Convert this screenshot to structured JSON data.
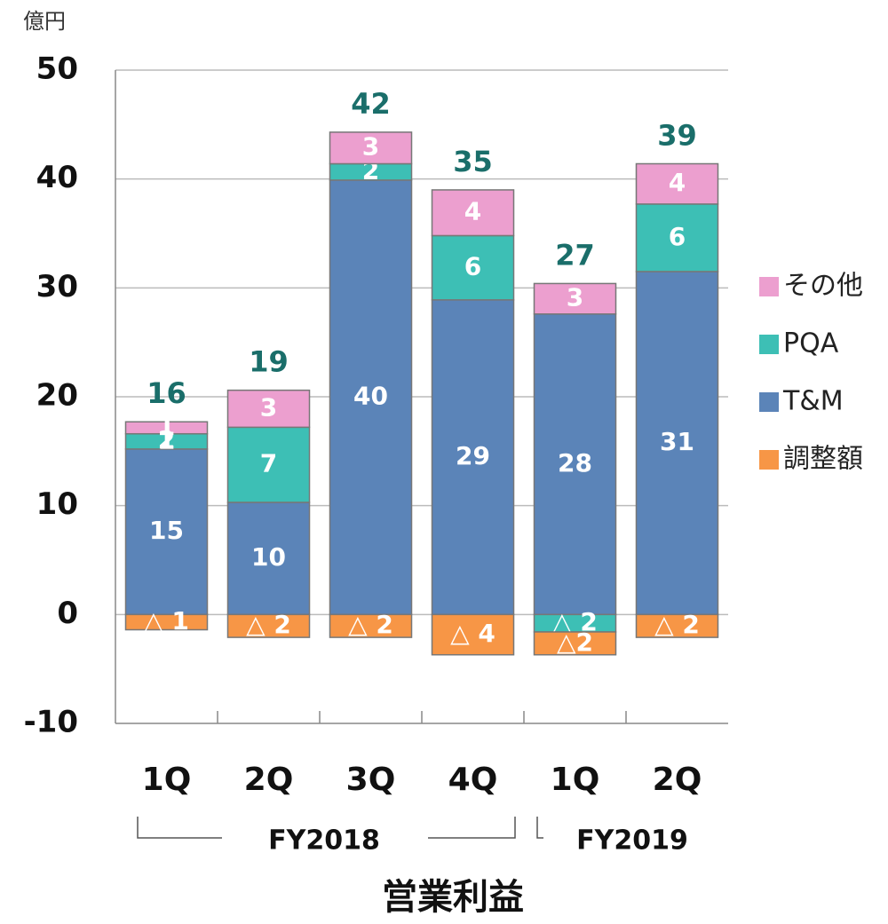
{
  "chart_data": {
    "type": "stacked_bar",
    "title": "営業利益",
    "unit": "億円",
    "categories": [
      "1Q",
      "2Q",
      "3Q",
      "4Q",
      "1Q",
      "2Q"
    ],
    "groups": [
      "FY2018",
      "FY2019"
    ],
    "series": [
      {
        "name": "調整額",
        "color": "#f79646",
        "values": [
          -1.4,
          -2.1,
          -2.1,
          -3.7,
          -2.1,
          -2.1
        ],
        "value_labels": [
          "△ 1",
          "△ 2",
          "△ 2",
          "△ 4",
          "△2",
          "△ 2"
        ]
      },
      {
        "name": "T&M",
        "color": "#5b84b8",
        "values": [
          15.2,
          10.3,
          39.9,
          28.9,
          27.6,
          31.5
        ],
        "value_labels": [
          "15",
          "10",
          "40",
          "29",
          "28",
          "31"
        ]
      },
      {
        "name": "PQA",
        "color": "#3dbfb5",
        "values": [
          1.4,
          6.9,
          1.5,
          5.9,
          -1.6,
          6.2
        ],
        "value_labels": [
          "1",
          "7",
          "2",
          "6",
          "△ 2",
          "6"
        ]
      },
      {
        "name": "その他",
        "color": "#ec9fcf",
        "values": [
          1.1,
          3.4,
          2.9,
          4.2,
          2.8,
          3.7
        ],
        "value_labels": [
          "1",
          "3",
          "3",
          "4",
          "3",
          "4"
        ]
      }
    ],
    "totals": [
      16.3,
      18.5,
      42.2,
      35.3,
      26.7,
      39.3
    ],
    "totals_labels": [
      "16",
      "19",
      "42",
      "35",
      "27",
      "39"
    ],
    "totals_color": "#1a6e6a",
    "annotations": [
      "2"
    ],
    "ylim": [
      -10,
      50
    ],
    "yticks": [
      -10,
      0,
      10,
      20,
      30,
      40,
      50
    ],
    "grid": true,
    "legend": "right"
  }
}
